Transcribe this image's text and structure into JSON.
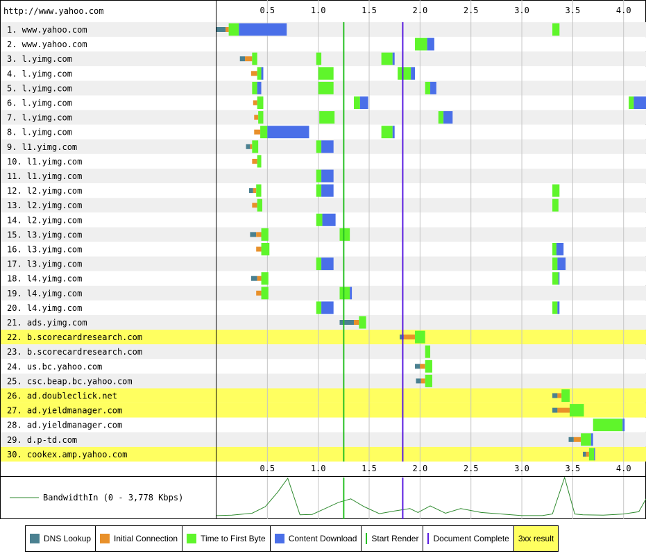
{
  "page_url": "http://www.yahoo.com",
  "colors": {
    "dns": "#4a8090",
    "connect": "#e8902a",
    "ttfb": "#5ff52b",
    "download": "#4a6fe8",
    "start_render": "#27c023",
    "doc_complete": "#5a1be0",
    "highlight_3xx": "#ffff60",
    "bandwidth": "#2e8a2e"
  },
  "legend": {
    "dns": "DNS Lookup",
    "connect": "Initial Connection",
    "ttfb": "Time to First Byte",
    "download": "Content Download",
    "start_render": "Start Render",
    "doc_complete": "Document Complete",
    "redirect": "3xx result"
  },
  "chart_data": {
    "type": "waterfall",
    "x_unit": "seconds",
    "xlim": [
      0,
      4.22
    ],
    "ticks": [
      "0.5",
      "1.0",
      "1.5",
      "2.0",
      "2.5",
      "3.0",
      "3.5",
      "4.0"
    ],
    "start_render": 1.25,
    "document_complete": 1.83,
    "bandwidth_label": "BandwidthIn (0 - 3,778 Kbps)",
    "bandwidth": {
      "t": [
        0,
        0.15,
        0.35,
        0.48,
        0.6,
        0.7,
        0.82,
        0.94,
        1.05,
        1.2,
        1.32,
        1.45,
        1.6,
        1.75,
        1.9,
        1.98,
        2.1,
        2.25,
        2.4,
        2.6,
        2.8,
        3.0,
        3.2,
        3.3,
        3.42,
        3.52,
        3.6,
        3.8,
        4.0,
        4.15,
        4.22
      ],
      "v": [
        0.02,
        0.03,
        0.08,
        0.25,
        0.62,
        0.98,
        0.04,
        0.05,
        0.18,
        0.36,
        0.45,
        0.25,
        0.07,
        0.14,
        0.2,
        0.1,
        0.27,
        0.08,
        0.2,
        0.1,
        0.06,
        0.02,
        0.02,
        0.06,
        1.0,
        0.06,
        0.04,
        0.03,
        0.06,
        0.12,
        0.45
      ]
    },
    "requests": [
      {
        "label": "1. www.yahoo.com",
        "hl": false,
        "phases": [
          [
            0.0,
            0.09,
            "dns"
          ],
          [
            0.09,
            0.12,
            "connect"
          ],
          [
            0.12,
            0.22,
            "ttfb"
          ],
          [
            0.22,
            0.69,
            "download"
          ],
          [
            3.3,
            3.37,
            "ttfb"
          ]
        ]
      },
      {
        "label": "2. www.yahoo.com",
        "hl": false,
        "phases": [
          [
            1.95,
            2.07,
            "ttfb"
          ],
          [
            2.07,
            2.14,
            "download"
          ]
        ]
      },
      {
        "label": "3. l.yimg.com",
        "hl": false,
        "phases": [
          [
            0.23,
            0.28,
            "dns"
          ],
          [
            0.28,
            0.35,
            "connect"
          ],
          [
            0.35,
            0.4,
            "ttfb"
          ],
          [
            0.98,
            1.03,
            "ttfb"
          ],
          [
            1.62,
            1.73,
            "ttfb"
          ],
          [
            1.73,
            1.75,
            "download"
          ]
        ]
      },
      {
        "label": "4. l.yimg.com",
        "hl": false,
        "phases": [
          [
            0.34,
            0.4,
            "connect"
          ],
          [
            0.4,
            0.44,
            "ttfb"
          ],
          [
            0.44,
            0.46,
            "download"
          ],
          [
            1.0,
            1.15,
            "ttfb"
          ],
          [
            1.78,
            1.91,
            "ttfb"
          ],
          [
            1.91,
            1.95,
            "download"
          ]
        ]
      },
      {
        "label": "5. l.yimg.com",
        "hl": false,
        "phases": [
          [
            0.35,
            0.4,
            "ttfb"
          ],
          [
            0.4,
            0.44,
            "download"
          ],
          [
            1.0,
            1.15,
            "ttfb"
          ],
          [
            2.05,
            2.1,
            "ttfb"
          ],
          [
            2.1,
            2.16,
            "download"
          ]
        ]
      },
      {
        "label": "6. l.yimg.com",
        "hl": false,
        "phases": [
          [
            0.36,
            0.4,
            "connect"
          ],
          [
            0.4,
            0.46,
            "ttfb"
          ],
          [
            1.35,
            1.41,
            "ttfb"
          ],
          [
            1.41,
            1.49,
            "download"
          ],
          [
            4.05,
            4.1,
            "ttfb"
          ],
          [
            4.1,
            4.22,
            "download"
          ]
        ]
      },
      {
        "label": "7. l.yimg.com",
        "hl": false,
        "phases": [
          [
            0.37,
            0.41,
            "connect"
          ],
          [
            0.41,
            0.46,
            "ttfb"
          ],
          [
            1.01,
            1.16,
            "ttfb"
          ],
          [
            2.18,
            2.23,
            "ttfb"
          ],
          [
            2.23,
            2.32,
            "download"
          ]
        ]
      },
      {
        "label": "8. l.yimg.com",
        "hl": false,
        "phases": [
          [
            0.37,
            0.43,
            "connect"
          ],
          [
            0.43,
            0.5,
            "ttfb"
          ],
          [
            0.5,
            0.91,
            "download"
          ],
          [
            1.62,
            1.73,
            "ttfb"
          ],
          [
            1.73,
            1.75,
            "download"
          ]
        ]
      },
      {
        "label": "9. l1.yimg.com",
        "hl": false,
        "phases": [
          [
            0.29,
            0.33,
            "dns"
          ],
          [
            0.33,
            0.35,
            "connect"
          ],
          [
            0.35,
            0.41,
            "ttfb"
          ],
          [
            0.98,
            1.03,
            "ttfb"
          ],
          [
            1.03,
            1.15,
            "download"
          ]
        ]
      },
      {
        "label": "10. l1.yimg.com",
        "hl": false,
        "phases": [
          [
            0.35,
            0.4,
            "connect"
          ],
          [
            0.4,
            0.44,
            "ttfb"
          ]
        ]
      },
      {
        "label": "11. l1.yimg.com",
        "hl": false,
        "phases": [
          [
            0.98,
            1.03,
            "ttfb"
          ],
          [
            1.03,
            1.15,
            "download"
          ]
        ]
      },
      {
        "label": "12. l2.yimg.com",
        "hl": false,
        "phases": [
          [
            0.32,
            0.36,
            "dns"
          ],
          [
            0.36,
            0.39,
            "connect"
          ],
          [
            0.39,
            0.44,
            "ttfb"
          ],
          [
            0.98,
            1.03,
            "ttfb"
          ],
          [
            1.03,
            1.15,
            "download"
          ],
          [
            3.3,
            3.37,
            "ttfb"
          ]
        ]
      },
      {
        "label": "13. l2.yimg.com",
        "hl": false,
        "phases": [
          [
            0.35,
            0.4,
            "connect"
          ],
          [
            0.4,
            0.45,
            "ttfb"
          ],
          [
            3.3,
            3.36,
            "ttfb"
          ]
        ]
      },
      {
        "label": "14. l2.yimg.com",
        "hl": false,
        "phases": [
          [
            0.98,
            1.04,
            "ttfb"
          ],
          [
            1.04,
            1.17,
            "download"
          ]
        ]
      },
      {
        "label": "15. l3.yimg.com",
        "hl": false,
        "phases": [
          [
            0.33,
            0.39,
            "dns"
          ],
          [
            0.39,
            0.44,
            "connect"
          ],
          [
            0.44,
            0.51,
            "ttfb"
          ],
          [
            1.21,
            1.31,
            "ttfb"
          ]
        ]
      },
      {
        "label": "16. l3.yimg.com",
        "hl": false,
        "phases": [
          [
            0.39,
            0.44,
            "connect"
          ],
          [
            0.44,
            0.52,
            "ttfb"
          ],
          [
            3.3,
            3.34,
            "ttfb"
          ],
          [
            3.34,
            3.41,
            "download"
          ]
        ]
      },
      {
        "label": "17. l3.yimg.com",
        "hl": false,
        "phases": [
          [
            0.98,
            1.03,
            "ttfb"
          ],
          [
            1.03,
            1.15,
            "download"
          ],
          [
            3.3,
            3.35,
            "ttfb"
          ],
          [
            3.35,
            3.43,
            "download"
          ]
        ]
      },
      {
        "label": "18. l4.yimg.com",
        "hl": false,
        "phases": [
          [
            0.34,
            0.4,
            "dns"
          ],
          [
            0.4,
            0.44,
            "connect"
          ],
          [
            0.44,
            0.51,
            "ttfb"
          ],
          [
            3.3,
            3.36,
            "ttfb"
          ],
          [
            3.36,
            3.37,
            "download"
          ]
        ]
      },
      {
        "label": "19. l4.yimg.com",
        "hl": false,
        "phases": [
          [
            0.39,
            0.44,
            "connect"
          ],
          [
            0.44,
            0.51,
            "ttfb"
          ],
          [
            1.21,
            1.31,
            "ttfb"
          ],
          [
            1.31,
            1.33,
            "download"
          ]
        ]
      },
      {
        "label": "20. l4.yimg.com",
        "hl": false,
        "phases": [
          [
            0.98,
            1.03,
            "ttfb"
          ],
          [
            1.03,
            1.15,
            "download"
          ],
          [
            3.3,
            3.35,
            "ttfb"
          ],
          [
            3.35,
            3.37,
            "download"
          ]
        ]
      },
      {
        "label": "21. ads.yimg.com",
        "hl": false,
        "phases": [
          [
            1.21,
            1.35,
            "dns"
          ],
          [
            1.35,
            1.4,
            "connect"
          ],
          [
            1.4,
            1.47,
            "ttfb"
          ]
        ]
      },
      {
        "label": "22. b.scorecardresearch.com",
        "hl": true,
        "phases": [
          [
            1.8,
            1.84,
            "dns"
          ],
          [
            1.84,
            1.95,
            "connect"
          ],
          [
            1.95,
            2.05,
            "ttfb"
          ]
        ]
      },
      {
        "label": "23. b.scorecardresearch.com",
        "hl": false,
        "phases": [
          [
            2.05,
            2.1,
            "ttfb"
          ]
        ]
      },
      {
        "label": "24. us.bc.yahoo.com",
        "hl": false,
        "phases": [
          [
            1.95,
            2.0,
            "dns"
          ],
          [
            2.0,
            2.05,
            "connect"
          ],
          [
            2.05,
            2.12,
            "ttfb"
          ]
        ]
      },
      {
        "label": "25. csc.beap.bc.yahoo.com",
        "hl": false,
        "phases": [
          [
            1.96,
            2.01,
            "dns"
          ],
          [
            2.01,
            2.05,
            "connect"
          ],
          [
            2.05,
            2.12,
            "ttfb"
          ]
        ]
      },
      {
        "label": "26. ad.doubleclick.net",
        "hl": true,
        "phases": [
          [
            3.3,
            3.35,
            "dns"
          ],
          [
            3.35,
            3.39,
            "connect"
          ],
          [
            3.39,
            3.47,
            "ttfb"
          ]
        ]
      },
      {
        "label": "27. ad.yieldmanager.com",
        "hl": true,
        "phases": [
          [
            3.3,
            3.35,
            "dns"
          ],
          [
            3.35,
            3.47,
            "connect"
          ],
          [
            3.47,
            3.61,
            "ttfb"
          ]
        ]
      },
      {
        "label": "28. ad.yieldmanager.com",
        "hl": false,
        "phases": [
          [
            3.7,
            3.99,
            "ttfb"
          ],
          [
            3.99,
            4.01,
            "download"
          ]
        ]
      },
      {
        "label": "29. d.p-td.com",
        "hl": false,
        "phases": [
          [
            3.46,
            3.51,
            "dns"
          ],
          [
            3.51,
            3.58,
            "connect"
          ],
          [
            3.58,
            3.68,
            "ttfb"
          ],
          [
            3.68,
            3.7,
            "download"
          ]
        ]
      },
      {
        "label": "30. cookex.amp.yahoo.com",
        "hl": true,
        "phases": [
          [
            3.6,
            3.63,
            "dns"
          ],
          [
            3.63,
            3.66,
            "connect"
          ],
          [
            3.66,
            3.71,
            "ttfb"
          ],
          [
            3.71,
            3.72,
            "download"
          ]
        ]
      }
    ]
  }
}
